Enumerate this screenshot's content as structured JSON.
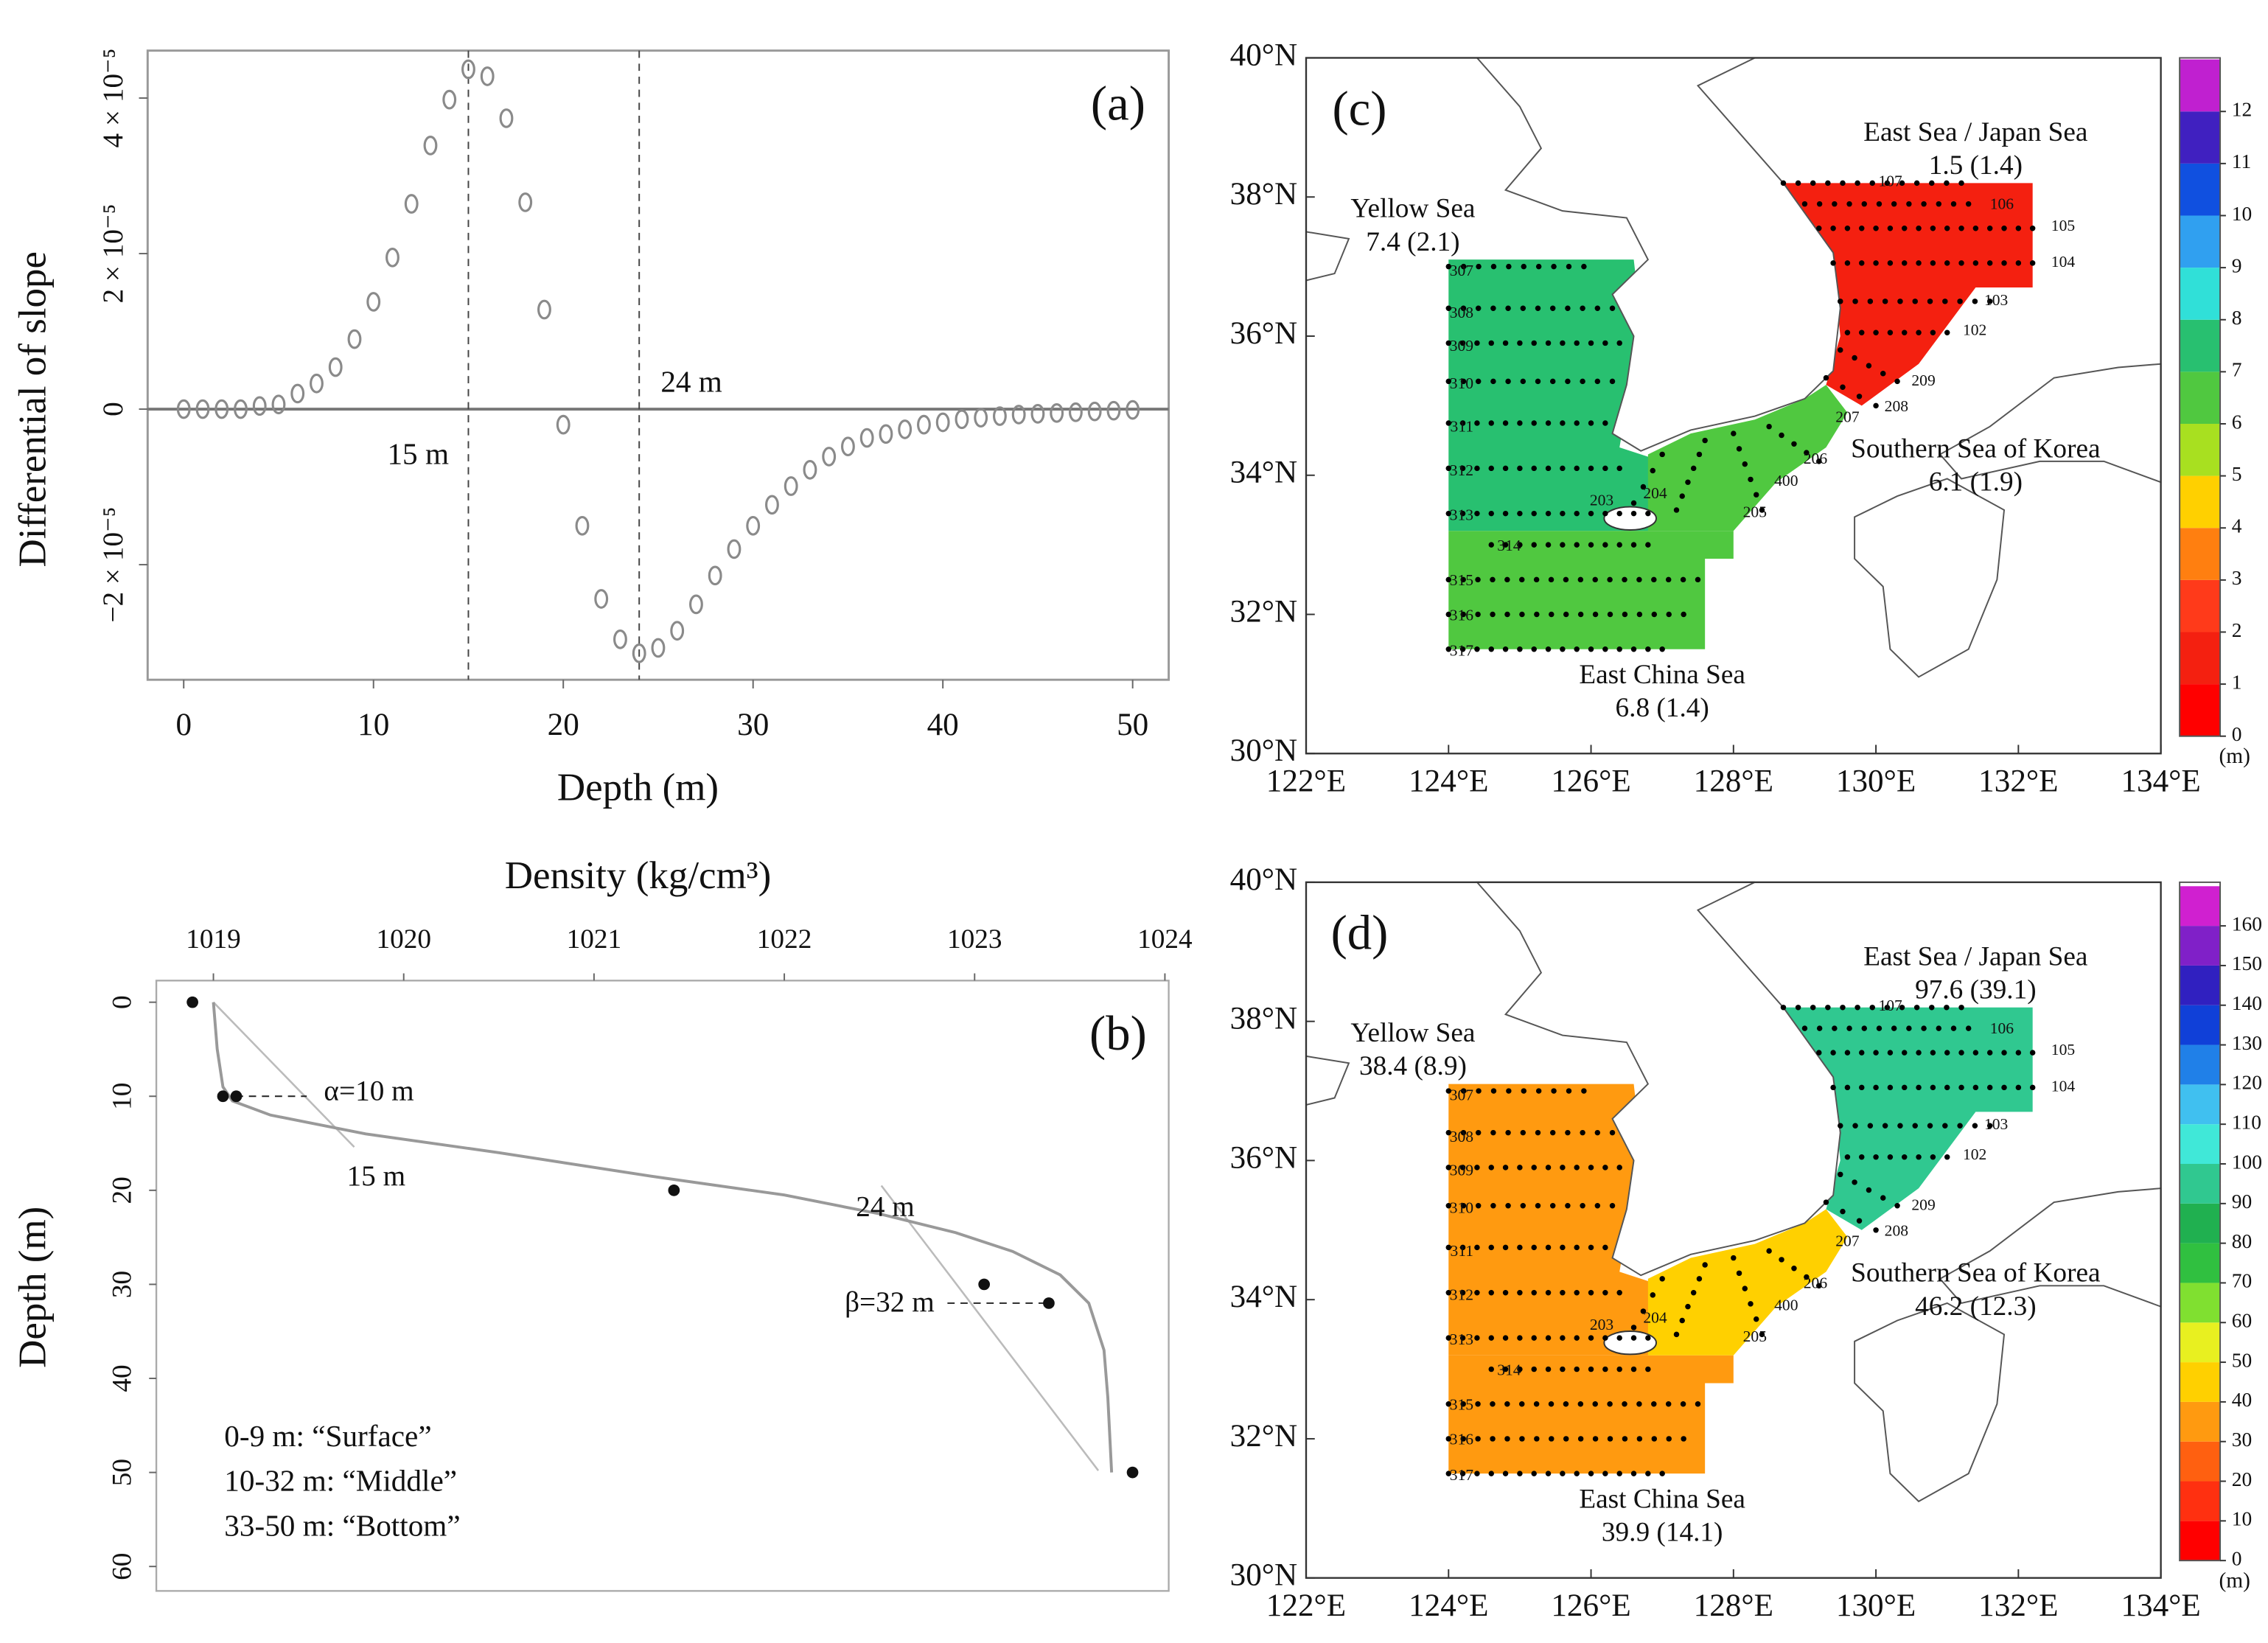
{
  "chart_data": [
    {
      "type": "scatter",
      "label": "(a)",
      "xlabel": "Depth (m)",
      "ylabel": "Differential of slope",
      "color": "#8a8a8a",
      "zero_line": true,
      "x": [
        0,
        1,
        2,
        3,
        4,
        5,
        6,
        7,
        8,
        9,
        10,
        11,
        12,
        13,
        14,
        15,
        16,
        17,
        18,
        19,
        20,
        21,
        22,
        23,
        24,
        25,
        26,
        27,
        28,
        29,
        30,
        31,
        32,
        33,
        34,
        35,
        36,
        37,
        38,
        39,
        40,
        41,
        42,
        43,
        44,
        45,
        46,
        47,
        48,
        49,
        50
      ],
      "values": [
        0,
        0,
        0,
        0,
        4e-07,
        6e-07,
        2e-06,
        3.3e-06,
        5.4e-06,
        9e-06,
        1.38e-05,
        1.95e-05,
        2.64e-05,
        3.39e-05,
        3.98e-05,
        4.37e-05,
        4.28e-05,
        3.74e-05,
        2.66e-05,
        1.28e-05,
        -2e-06,
        -1.5e-05,
        -2.44e-05,
        -2.96e-05,
        -3.14e-05,
        -3.07e-05,
        -2.85e-05,
        -2.51e-05,
        -2.14e-05,
        -1.8e-05,
        -1.5e-05,
        -1.23e-05,
        -9.9e-06,
        -7.8e-06,
        -6.1e-06,
        -4.8e-06,
        -3.7e-06,
        -3.2e-06,
        -2.6e-06,
        -2e-06,
        -1.7e-06,
        -1.3e-06,
        -1.1e-06,
        -9e-07,
        -7e-07,
        -6e-07,
        -5e-07,
        -4e-07,
        -3e-07,
        -2e-07,
        -1e-07
      ],
      "xlim": [
        -1.9,
        51.9
      ],
      "ylim": [
        -3.48e-05,
        4.61e-05
      ],
      "xticks": [
        0,
        10,
        20,
        30,
        40,
        50
      ],
      "yticks": [
        {
          "value": -2e-05,
          "label": "−2 × 10⁻⁵"
        },
        0,
        {
          "value": 2e-05,
          "label": "2 × 10⁻⁵"
        },
        {
          "value": 4e-05,
          "label": "4 × 10⁻⁵"
        }
      ],
      "vlines": [
        {
          "x": 15,
          "label": "15 m"
        },
        {
          "x": 24,
          "label": "24 m"
        }
      ]
    },
    {
      "type": "profile",
      "label": "(b)",
      "xlabel": "Density (kg/cm³)",
      "ylabel": "Depth (m)",
      "x_axis_position": "top",
      "y_inverted": true,
      "xlim": [
        1018.7,
        1024.02
      ],
      "ylim": [
        -2.3,
        62.6
      ],
      "xticks": [
        1019,
        1020,
        1021,
        1022,
        1023,
        1024
      ],
      "yticks": [
        0,
        10,
        20,
        30,
        40,
        50,
        60
      ],
      "curve": {
        "x": [
          1019.0,
          1019.02,
          1019.05,
          1019.1,
          1019.3,
          1019.8,
          1020.5,
          1021.3,
          1022.0,
          1022.5,
          1022.9,
          1023.2,
          1023.45,
          1023.6,
          1023.68,
          1023.7,
          1023.72
        ],
        "y": [
          0,
          5,
          9,
          10.5,
          12,
          14,
          16,
          18.5,
          20.5,
          22.5,
          24.5,
          26.5,
          29,
          32,
          37,
          42,
          50
        ]
      },
      "points": {
        "x": [
          1018.89,
          1019.05,
          1019.12,
          1021.42,
          1023.05,
          1023.39,
          1023.83
        ],
        "y": [
          0,
          10,
          10,
          20,
          30,
          32,
          50
        ]
      },
      "tangents": [
        {
          "x": [
            1019.0,
            1019.74
          ],
          "y": [
            0,
            15.4
          ]
        },
        {
          "x": [
            1022.51,
            1023.65
          ],
          "y": [
            19.5,
            49.8
          ]
        }
      ],
      "markers": [
        {
          "label": "α=10 m",
          "y": 10
        },
        {
          "label": "β=32 m",
          "y": 32
        }
      ],
      "depth_labels": [
        {
          "label": "15 m",
          "y": 15
        },
        {
          "label": "24 m",
          "y": 24
        }
      ],
      "notes": [
        "0-9 m: “Surface”",
        "10-32 m: “Middle”",
        "33-50 m: “Bottom”"
      ]
    },
    {
      "type": "map",
      "label": "(c)",
      "xlim": [
        122,
        134
      ],
      "ylim": [
        30,
        40
      ],
      "xticks": [
        {
          "value": 122,
          "label": "122°E"
        },
        {
          "value": 124,
          "label": "124°E"
        },
        {
          "value": 126,
          "label": "126°E"
        },
        {
          "value": 128,
          "label": "128°E"
        },
        {
          "value": 130,
          "label": "130°E"
        },
        {
          "value": 132,
          "label": "132°E"
        },
        {
          "value": 134,
          "label": "134°E"
        }
      ],
      "yticks": [
        {
          "value": 30,
          "label": "30°N"
        },
        {
          "value": 32,
          "label": "32°N"
        },
        {
          "value": 34,
          "label": "34°N"
        },
        {
          "value": 36,
          "label": "36°N"
        },
        {
          "value": 38,
          "label": "38°N"
        },
        {
          "value": 40,
          "label": "40°N"
        }
      ],
      "regions": [
        "Yellow Sea",
        "East China Sea",
        "Southern Sea of Korea",
        "East Sea / Japan Sea"
      ],
      "values": [
        7.4,
        6.8,
        6.1,
        1.5
      ],
      "value_labels": [
        "7.4 (2.1)",
        "6.8 (1.4)",
        "6.1 (1.9)",
        "1.5 (1.4)"
      ],
      "stations": [
        "107",
        "106",
        "105",
        "104",
        "103",
        "102",
        "209",
        "208",
        "207",
        "206",
        "205",
        "400",
        "204",
        "203",
        "307",
        "308",
        "309",
        "310",
        "311",
        "312",
        "313",
        "314",
        "315",
        "316",
        "317"
      ],
      "clim": [
        0,
        13.03
      ],
      "cticks": [
        0,
        1,
        2,
        3,
        4,
        5,
        6,
        7,
        8,
        9,
        10,
        11,
        12
      ],
      "cunit": "(m)",
      "colormap": [
        "#ff0000",
        "#f42010",
        "#ff3a1a",
        "#ff7f10",
        "#ffd000",
        "#a8e020",
        "#50c840",
        "#28c070",
        "#30e0d8",
        "#30a0f0",
        "#1050e0",
        "#4020c0",
        "#c020d0"
      ]
    },
    {
      "type": "map",
      "label": "(d)",
      "xlim": [
        122,
        134
      ],
      "ylim": [
        30,
        40
      ],
      "xticks": [
        {
          "value": 122,
          "label": "122°E"
        },
        {
          "value": 124,
          "label": "124°E"
        },
        {
          "value": 126,
          "label": "126°E"
        },
        {
          "value": 128,
          "label": "128°E"
        },
        {
          "value": 130,
          "label": "130°E"
        },
        {
          "value": 132,
          "label": "132°E"
        },
        {
          "value": 134,
          "label": "134°E"
        }
      ],
      "yticks": [
        {
          "value": 30,
          "label": "30°N"
        },
        {
          "value": 32,
          "label": "32°N"
        },
        {
          "value": 34,
          "label": "34°N"
        },
        {
          "value": 36,
          "label": "36°N"
        },
        {
          "value": 38,
          "label": "38°N"
        },
        {
          "value": 40,
          "label": "40°N"
        }
      ],
      "regions": [
        "Yellow Sea",
        "East China Sea",
        "Southern Sea of Korea",
        "East Sea / Japan Sea"
      ],
      "values": [
        38.4,
        39.9,
        46.2,
        97.6
      ],
      "value_labels": [
        "38.4 (8.9)",
        "39.9 (14.1)",
        "46.2 (12.3)",
        "97.6 (39.1)"
      ],
      "stations": [
        "107",
        "106",
        "105",
        "104",
        "103",
        "102",
        "209",
        "208",
        "207",
        "206",
        "205",
        "400",
        "204",
        "203",
        "307",
        "308",
        "309",
        "310",
        "311",
        "312",
        "313",
        "314",
        "315",
        "316",
        "317"
      ],
      "clim": [
        0,
        171
      ],
      "cticks": [
        0,
        10,
        20,
        30,
        40,
        50,
        60,
        70,
        80,
        90,
        100,
        110,
        120,
        130,
        140,
        150,
        160
      ],
      "cunit": "(m)",
      "colormap": [
        "#ff0000",
        "#ff3010",
        "#ff6010",
        "#ff9a10",
        "#ffd000",
        "#e8f020",
        "#80e030",
        "#30c040",
        "#20b050",
        "#30c890",
        "#40e8d8",
        "#40c0f0",
        "#2080e8",
        "#1040d8",
        "#3020c0",
        "#8020c8",
        "#d020d0"
      ]
    }
  ]
}
